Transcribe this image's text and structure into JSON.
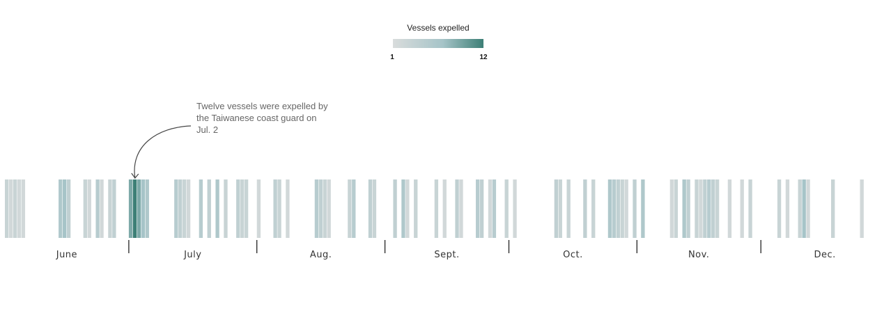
{
  "chart_data": {
    "type": "heatmap",
    "legend": {
      "title": "Vessels expelled",
      "min_label": "1",
      "max_label": "12",
      "min": 1,
      "max": 12,
      "color_low": "#d9dcdc",
      "color_high": "#3d7f76"
    },
    "month_labels": [
      "June",
      "July",
      "Aug.",
      "Sept.",
      "Oct.",
      "Nov.",
      "Dec."
    ],
    "month_days": [
      30,
      31,
      31,
      30,
      31,
      30,
      31
    ],
    "annotation": {
      "lines": [
        "Twelve vessels were expelled by",
        "the Taiwanese coast guard on",
        "Jul. 2"
      ],
      "target_day": 32
    },
    "days": [
      {
        "day": 1,
        "value": 3
      },
      {
        "day": 2,
        "value": 2
      },
      {
        "day": 3,
        "value": 3
      },
      {
        "day": 4,
        "value": 2
      },
      {
        "day": 5,
        "value": 2
      },
      {
        "day": 14,
        "value": 6
      },
      {
        "day": 15,
        "value": 7
      },
      {
        "day": 16,
        "value": 4
      },
      {
        "day": 20,
        "value": 3
      },
      {
        "day": 21,
        "value": 2
      },
      {
        "day": 23,
        "value": 5
      },
      {
        "day": 24,
        "value": 2
      },
      {
        "day": 26,
        "value": 3
      },
      {
        "day": 27,
        "value": 4
      },
      {
        "day": 31,
        "value": 9
      },
      {
        "day": 32,
        "value": 12
      },
      {
        "day": 33,
        "value": 9
      },
      {
        "day": 34,
        "value": 7
      },
      {
        "day": 35,
        "value": 6
      },
      {
        "day": 42,
        "value": 5
      },
      {
        "day": 43,
        "value": 4
      },
      {
        "day": 44,
        "value": 3
      },
      {
        "day": 45,
        "value": 2
      },
      {
        "day": 48,
        "value": 5
      },
      {
        "day": 50,
        "value": 4
      },
      {
        "day": 52,
        "value": 6
      },
      {
        "day": 54,
        "value": 3
      },
      {
        "day": 57,
        "value": 4
      },
      {
        "day": 58,
        "value": 3
      },
      {
        "day": 59,
        "value": 3
      },
      {
        "day": 62,
        "value": 2
      },
      {
        "day": 66,
        "value": 4
      },
      {
        "day": 67,
        "value": 3
      },
      {
        "day": 69,
        "value": 2
      },
      {
        "day": 76,
        "value": 5
      },
      {
        "day": 77,
        "value": 4
      },
      {
        "day": 78,
        "value": 3
      },
      {
        "day": 79,
        "value": 2
      },
      {
        "day": 84,
        "value": 3
      },
      {
        "day": 85,
        "value": 5
      },
      {
        "day": 89,
        "value": 4
      },
      {
        "day": 90,
        "value": 3
      },
      {
        "day": 95,
        "value": 4
      },
      {
        "day": 97,
        "value": 6
      },
      {
        "day": 98,
        "value": 2
      },
      {
        "day": 100,
        "value": 3
      },
      {
        "day": 105,
        "value": 3
      },
      {
        "day": 107,
        "value": 2
      },
      {
        "day": 110,
        "value": 4
      },
      {
        "day": 111,
        "value": 2
      },
      {
        "day": 115,
        "value": 5
      },
      {
        "day": 116,
        "value": 4
      },
      {
        "day": 118,
        "value": 2
      },
      {
        "day": 119,
        "value": 5
      },
      {
        "day": 122,
        "value": 3
      },
      {
        "day": 124,
        "value": 2
      },
      {
        "day": 134,
        "value": 4
      },
      {
        "day": 135,
        "value": 3
      },
      {
        "day": 137,
        "value": 3
      },
      {
        "day": 141,
        "value": 4
      },
      {
        "day": 143,
        "value": 3
      },
      {
        "day": 147,
        "value": 6
      },
      {
        "day": 148,
        "value": 5
      },
      {
        "day": 149,
        "value": 4
      },
      {
        "day": 150,
        "value": 3
      },
      {
        "day": 151,
        "value": 2
      },
      {
        "day": 153,
        "value": 4
      },
      {
        "day": 155,
        "value": 6
      },
      {
        "day": 162,
        "value": 2
      },
      {
        "day": 163,
        "value": 3
      },
      {
        "day": 165,
        "value": 6
      },
      {
        "day": 166,
        "value": 4
      },
      {
        "day": 168,
        "value": 3
      },
      {
        "day": 169,
        "value": 2
      },
      {
        "day": 170,
        "value": 4
      },
      {
        "day": 171,
        "value": 5
      },
      {
        "day": 172,
        "value": 4
      },
      {
        "day": 173,
        "value": 3
      },
      {
        "day": 176,
        "value": 2
      },
      {
        "day": 179,
        "value": 2
      },
      {
        "day": 181,
        "value": 3
      },
      {
        "day": 188,
        "value": 3
      },
      {
        "day": 190,
        "value": 2
      },
      {
        "day": 193,
        "value": 3
      },
      {
        "day": 194,
        "value": 7
      },
      {
        "day": 195,
        "value": 2
      },
      {
        "day": 201,
        "value": 3
      },
      {
        "day": 208,
        "value": 2
      }
    ]
  }
}
